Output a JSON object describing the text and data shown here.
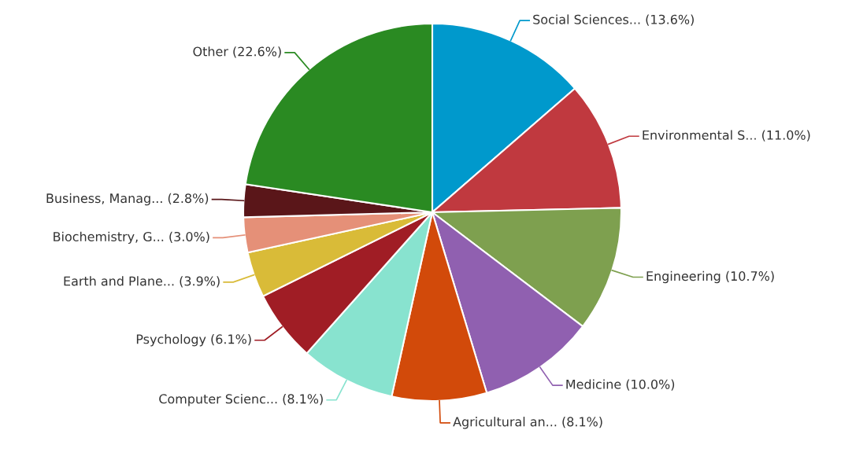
{
  "chart_data": {
    "type": "pie",
    "categories": [
      "Social Sciences...",
      "Environmental S...",
      "Engineering",
      "Medicine",
      "Agricultural an...",
      "Computer Scienc...",
      "Psychology",
      "Earth and Plane...",
      "Biochemistry, G...",
      "Business, Manag...",
      "Other"
    ],
    "values": [
      13.6,
      11.0,
      10.7,
      10.0,
      8.1,
      8.1,
      6.1,
      3.9,
      3.0,
      2.8,
      22.6
    ],
    "value_labels": [
      "(13.6%)",
      "(11.0%)",
      "(10.7%)",
      "(10.0%)",
      "(8.1%)",
      "(8.1%)",
      "(6.1%)",
      "(3.9%)",
      "(3.0%)",
      "(2.8%)",
      "(22.6%)"
    ],
    "colors": [
      "#0099cc",
      "#c0393f",
      "#7ea04f",
      "#9060b0",
      "#d24a0a",
      "#88e3cf",
      "#a01d25",
      "#d9bb38",
      "#e59078",
      "#5a1619",
      "#2a8a22"
    ],
    "legend": false
  }
}
